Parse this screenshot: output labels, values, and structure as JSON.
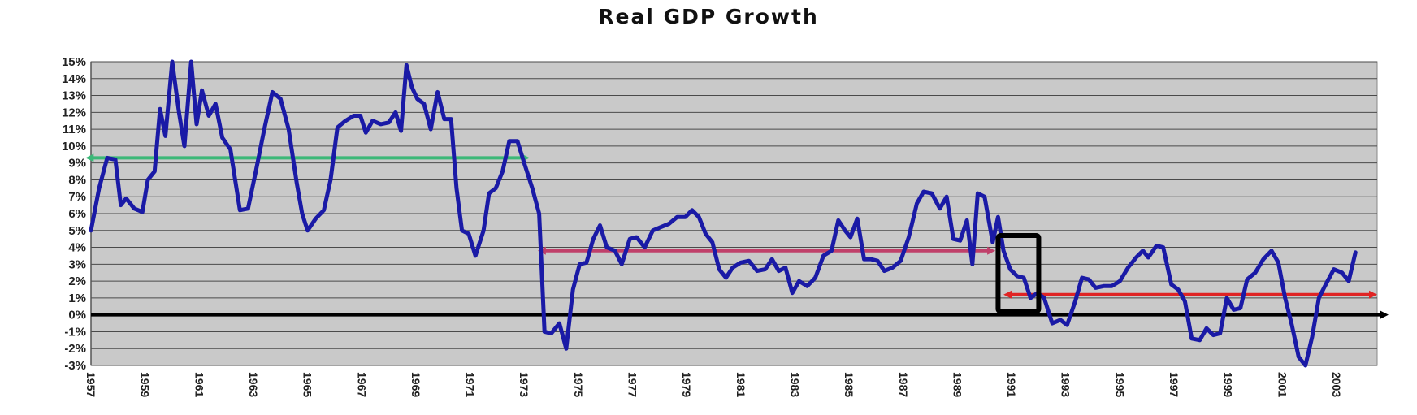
{
  "chart_data": {
    "type": "line",
    "title": "Real GDP Growth",
    "xlabel": "",
    "ylabel": "",
    "xlim": [
      1957,
      2004.5
    ],
    "ylim": [
      -3,
      15
    ],
    "grid": true,
    "legend": "none",
    "y_ticks": [
      "15%",
      "14%",
      "13%",
      "12%",
      "11%",
      "10%",
      "9%",
      "8%",
      "7%",
      "6%",
      "5%",
      "4%",
      "3%",
      "2%",
      "1%",
      "0%",
      "-1%",
      "-2%",
      "-3%"
    ],
    "y_tick_values": [
      15,
      14,
      13,
      12,
      11,
      10,
      9,
      8,
      7,
      6,
      5,
      4,
      3,
      2,
      1,
      0,
      -1,
      -2,
      -3
    ],
    "x_ticks": [
      "1957",
      "1959",
      "1961",
      "1963",
      "1965",
      "1967",
      "1969",
      "1971",
      "1973",
      "1975",
      "1977",
      "1979",
      "1981",
      "1983",
      "1985",
      "1987",
      "1989",
      "1991",
      "1993",
      "1995",
      "1997",
      "1999",
      "2001",
      "2003"
    ],
    "x_tick_values": [
      1957,
      1959,
      1961,
      1963,
      1965,
      1967,
      1969,
      1971,
      1973,
      1975,
      1977,
      1979,
      1981,
      1983,
      1985,
      1987,
      1989,
      1991,
      1993,
      1995,
      1997,
      1999,
      2001,
      2003
    ],
    "series": [
      {
        "color": "#1a1aa6",
        "points": [
          [
            1957.0,
            5.0
          ],
          [
            1957.3,
            7.5
          ],
          [
            1957.6,
            9.3
          ],
          [
            1957.9,
            9.2
          ],
          [
            1958.1,
            6.5
          ],
          [
            1958.3,
            6.9
          ],
          [
            1958.6,
            6.3
          ],
          [
            1958.9,
            6.1
          ],
          [
            1959.1,
            8.0
          ],
          [
            1959.35,
            8.5
          ],
          [
            1959.55,
            12.2
          ],
          [
            1959.75,
            10.6
          ],
          [
            1960.0,
            15.0
          ],
          [
            1960.25,
            12.0
          ],
          [
            1960.45,
            10.0
          ],
          [
            1960.7,
            15.0
          ],
          [
            1960.9,
            11.3
          ],
          [
            1961.1,
            13.3
          ],
          [
            1961.35,
            11.8
          ],
          [
            1961.6,
            12.5
          ],
          [
            1961.85,
            10.5
          ],
          [
            1962.15,
            9.8
          ],
          [
            1962.5,
            6.2
          ],
          [
            1962.8,
            6.3
          ],
          [
            1963.1,
            8.6
          ],
          [
            1963.4,
            11.0
          ],
          [
            1963.7,
            13.2
          ],
          [
            1964.0,
            12.8
          ],
          [
            1964.3,
            11.0
          ],
          [
            1964.6,
            7.8
          ],
          [
            1964.8,
            6.0
          ],
          [
            1965.0,
            5.0
          ],
          [
            1965.3,
            5.7
          ],
          [
            1965.6,
            6.2
          ],
          [
            1965.85,
            8.0
          ],
          [
            1966.1,
            11.1
          ],
          [
            1966.4,
            11.5
          ],
          [
            1966.7,
            11.8
          ],
          [
            1966.95,
            11.8
          ],
          [
            1967.15,
            10.8
          ],
          [
            1967.4,
            11.5
          ],
          [
            1967.7,
            11.3
          ],
          [
            1968.0,
            11.4
          ],
          [
            1968.25,
            12.0
          ],
          [
            1968.45,
            10.9
          ],
          [
            1968.65,
            14.8
          ],
          [
            1968.85,
            13.5
          ],
          [
            1969.05,
            12.8
          ],
          [
            1969.3,
            12.5
          ],
          [
            1969.55,
            11.0
          ],
          [
            1969.8,
            13.2
          ],
          [
            1970.05,
            11.6
          ],
          [
            1970.3,
            11.6
          ],
          [
            1970.5,
            7.5
          ],
          [
            1970.7,
            5.0
          ],
          [
            1970.95,
            4.8
          ],
          [
            1971.2,
            3.5
          ],
          [
            1971.5,
            5.0
          ],
          [
            1971.7,
            7.2
          ],
          [
            1971.95,
            7.5
          ],
          [
            1972.2,
            8.5
          ],
          [
            1972.45,
            10.3
          ],
          [
            1972.75,
            10.3
          ],
          [
            1973.0,
            9.0
          ],
          [
            1973.3,
            7.5
          ],
          [
            1973.55,
            6.0
          ],
          [
            1973.75,
            -1.0
          ],
          [
            1974.0,
            -1.1
          ],
          [
            1974.3,
            -0.5
          ],
          [
            1974.55,
            -2.0
          ],
          [
            1974.8,
            1.5
          ],
          [
            1975.05,
            3.0
          ],
          [
            1975.3,
            3.1
          ],
          [
            1975.55,
            4.5
          ],
          [
            1975.8,
            5.3
          ],
          [
            1976.05,
            4.0
          ],
          [
            1976.35,
            3.8
          ],
          [
            1976.6,
            3.0
          ],
          [
            1976.9,
            4.5
          ],
          [
            1977.15,
            4.6
          ],
          [
            1977.45,
            4.0
          ],
          [
            1977.75,
            5.0
          ],
          [
            1978.05,
            5.2
          ],
          [
            1978.35,
            5.4
          ],
          [
            1978.65,
            5.8
          ],
          [
            1978.95,
            5.8
          ],
          [
            1979.2,
            6.2
          ],
          [
            1979.45,
            5.8
          ],
          [
            1979.7,
            4.8
          ],
          [
            1979.95,
            4.3
          ],
          [
            1980.2,
            2.7
          ],
          [
            1980.45,
            2.2
          ],
          [
            1980.7,
            2.8
          ],
          [
            1981.0,
            3.1
          ],
          [
            1981.3,
            3.2
          ],
          [
            1981.6,
            2.6
          ],
          [
            1981.9,
            2.7
          ],
          [
            1982.15,
            3.3
          ],
          [
            1982.4,
            2.6
          ],
          [
            1982.65,
            2.8
          ],
          [
            1982.9,
            1.3
          ],
          [
            1983.15,
            2.0
          ],
          [
            1983.45,
            1.7
          ],
          [
            1983.75,
            2.2
          ],
          [
            1984.05,
            3.5
          ],
          [
            1984.35,
            3.8
          ],
          [
            1984.6,
            5.6
          ],
          [
            1984.85,
            5.0
          ],
          [
            1985.05,
            4.6
          ],
          [
            1985.3,
            5.7
          ],
          [
            1985.55,
            3.3
          ],
          [
            1985.8,
            3.3
          ],
          [
            1986.05,
            3.2
          ],
          [
            1986.3,
            2.6
          ],
          [
            1986.6,
            2.8
          ],
          [
            1986.9,
            3.2
          ],
          [
            1987.2,
            4.6
          ],
          [
            1987.5,
            6.6
          ],
          [
            1987.75,
            7.3
          ],
          [
            1988.05,
            7.2
          ],
          [
            1988.35,
            6.3
          ],
          [
            1988.6,
            7.0
          ],
          [
            1988.85,
            4.5
          ],
          [
            1989.1,
            4.4
          ],
          [
            1989.35,
            5.6
          ],
          [
            1989.55,
            3.0
          ],
          [
            1989.75,
            7.2
          ],
          [
            1990.0,
            7.0
          ],
          [
            1990.3,
            4.3
          ],
          [
            1990.5,
            5.8
          ],
          [
            1990.7,
            3.8
          ],
          [
            1990.95,
            2.7
          ],
          [
            1991.2,
            2.3
          ],
          [
            1991.45,
            2.2
          ],
          [
            1991.7,
            1.0
          ],
          [
            1991.95,
            1.3
          ],
          [
            1992.2,
            1.0
          ],
          [
            1992.5,
            -0.5
          ],
          [
            1992.8,
            -0.3
          ],
          [
            1993.05,
            -0.6
          ],
          [
            1993.35,
            0.8
          ],
          [
            1993.6,
            2.2
          ],
          [
            1993.85,
            2.1
          ],
          [
            1994.1,
            1.6
          ],
          [
            1994.4,
            1.7
          ],
          [
            1994.7,
            1.7
          ],
          [
            1995.0,
            2.0
          ],
          [
            1995.3,
            2.8
          ],
          [
            1995.6,
            3.4
          ],
          [
            1995.85,
            3.8
          ],
          [
            1996.05,
            3.4
          ],
          [
            1996.35,
            4.1
          ],
          [
            1996.6,
            4.0
          ],
          [
            1996.9,
            1.8
          ],
          [
            1997.15,
            1.5
          ],
          [
            1997.4,
            0.8
          ],
          [
            1997.65,
            -1.4
          ],
          [
            1997.95,
            -1.5
          ],
          [
            1998.2,
            -0.8
          ],
          [
            1998.45,
            -1.2
          ],
          [
            1998.7,
            -1.1
          ],
          [
            1998.95,
            1.0
          ],
          [
            1999.2,
            0.3
          ],
          [
            1999.45,
            0.4
          ],
          [
            1999.7,
            2.1
          ],
          [
            2000.0,
            2.5
          ],
          [
            2000.3,
            3.3
          ],
          [
            2000.6,
            3.8
          ],
          [
            2000.85,
            3.1
          ],
          [
            2001.1,
            1.0
          ],
          [
            2001.35,
            -0.6
          ],
          [
            2001.6,
            -2.5
          ],
          [
            2001.85,
            -3.0
          ],
          [
            2002.1,
            -1.3
          ],
          [
            2002.35,
            1.0
          ],
          [
            2002.6,
            1.8
          ],
          [
            2002.9,
            2.7
          ],
          [
            2003.2,
            2.5
          ],
          [
            2003.45,
            2.0
          ],
          [
            2003.7,
            3.7
          ]
        ]
      }
    ],
    "annotations": [
      {
        "type": "arrow",
        "color": "#3cb878",
        "from": [
          1956.8,
          9.3
        ],
        "to": [
          1973.2,
          9.3
        ]
      },
      {
        "type": "arrow",
        "color": "#c0406a",
        "from": [
          1973.5,
          3.8
        ],
        "to": [
          1990.4,
          3.8
        ]
      },
      {
        "type": "arrow",
        "color": "#e02424",
        "from": [
          1990.7,
          1.2
        ],
        "to": [
          2004.5,
          1.2
        ]
      },
      {
        "type": "box",
        "color": "#000000",
        "x": [
          1990.5,
          1992.0
        ],
        "y": [
          0.2,
          4.7
        ]
      },
      {
        "type": "zero-line",
        "color": "#000000",
        "y": 0
      }
    ]
  }
}
